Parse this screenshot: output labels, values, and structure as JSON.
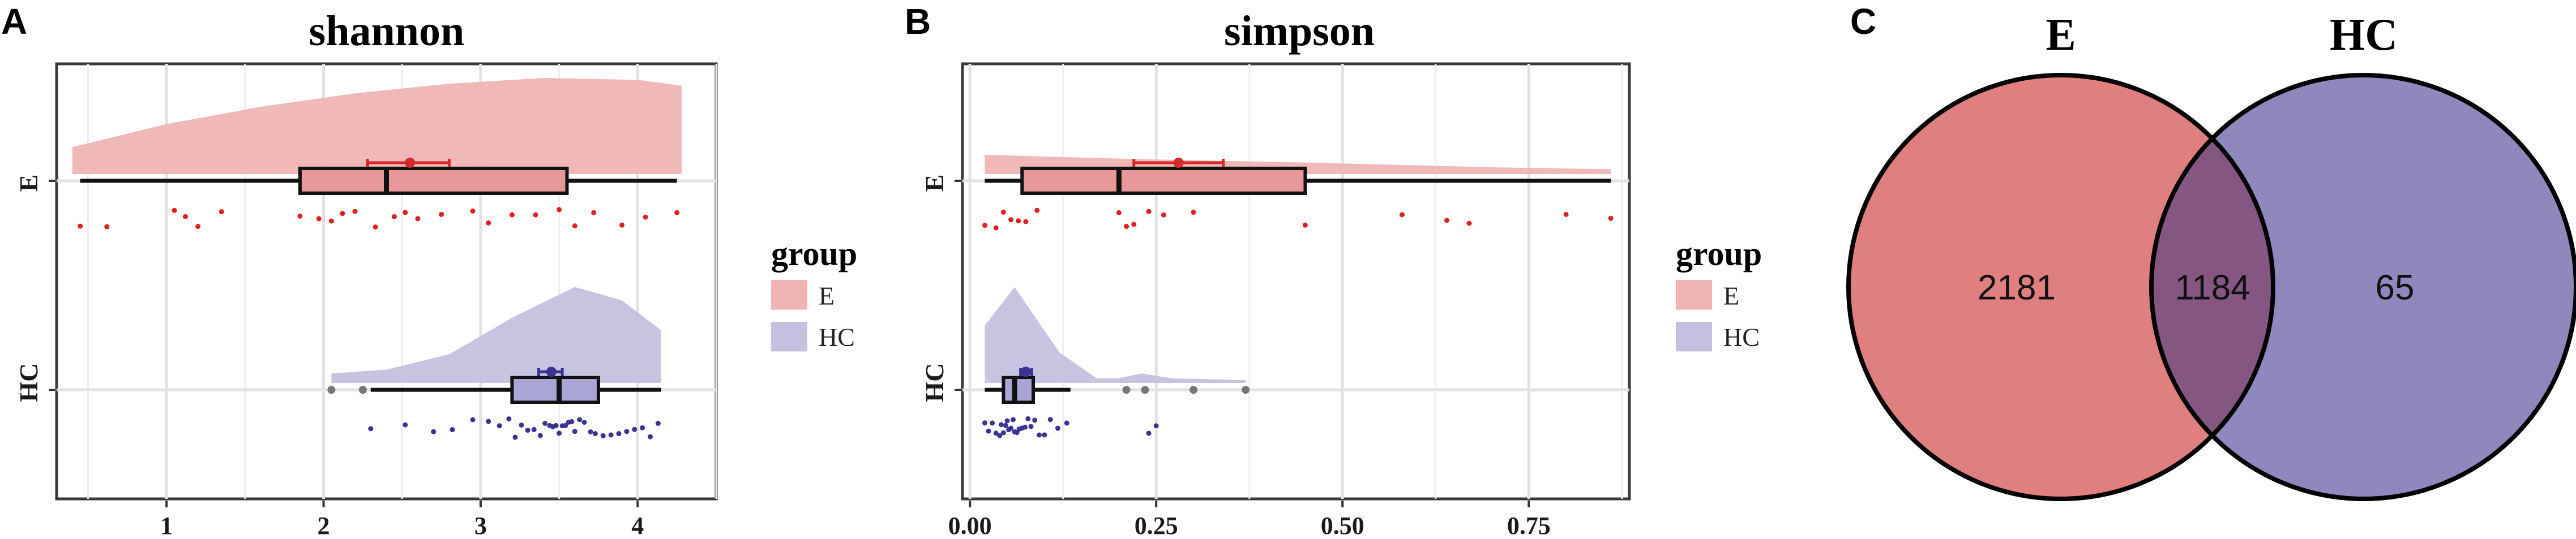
{
  "panels": {
    "a": "A",
    "b": "B",
    "c": "C"
  },
  "colors": {
    "E_fill": "#f0b4b4",
    "E_box": "#e89898",
    "E_point": "#e02020",
    "E_mean": "#d62a2a",
    "HC_fill": "#c4c1e0",
    "HC_box": "#a9a6d6",
    "HC_point": "#3b3394",
    "outlier": "#777777",
    "venn_E": "#e07f80",
    "venn_HC": "#8f88bd",
    "venn_overlap": "#855682"
  },
  "legend": {
    "title": "group",
    "items": [
      "E",
      "HC"
    ]
  },
  "chart_data": [
    {
      "type": "raincloud",
      "title": "shannon",
      "xlabel": "",
      "ylabel": "",
      "xlim": [
        0.3,
        4.5
      ],
      "xticks": [
        1,
        2,
        3,
        4
      ],
      "xtick_labels": [
        "1",
        "2",
        "3",
        "4"
      ],
      "categories": [
        "E",
        "HC"
      ],
      "grid": true,
      "legend_position": "right",
      "series": [
        {
          "name": "E",
          "box": {
            "whisker_low": 0.45,
            "q1": 1.85,
            "median": 2.4,
            "q3": 3.55,
            "whisker_high": 4.25
          },
          "mean": 2.55,
          "ci": [
            2.28,
            2.8
          ],
          "outliers": [],
          "points": [
            0.45,
            0.62,
            1.05,
            1.12,
            1.2,
            1.35,
            1.85,
            1.97,
            2.05,
            2.12,
            2.2,
            2.33,
            2.45,
            2.52,
            2.6,
            2.75,
            2.95,
            3.05,
            3.2,
            3.35,
            3.5,
            3.6,
            3.72,
            3.9,
            4.05,
            4.25
          ],
          "density": {
            "x": [
              0.4,
              1.0,
              1.6,
              2.2,
              2.8,
              3.4,
              4.0,
              4.28
            ],
            "y": [
              0.28,
              0.52,
              0.7,
              0.84,
              0.94,
              1.0,
              0.98,
              0.92
            ]
          }
        },
        {
          "name": "HC",
          "box": {
            "whisker_low": 2.3,
            "q1": 3.2,
            "median": 3.5,
            "q3": 3.75,
            "whisker_high": 4.15
          },
          "mean": 3.45,
          "ci": [
            3.37,
            3.52
          ],
          "outliers": [
            2.05,
            2.25
          ],
          "points": [
            2.3,
            2.52,
            2.7,
            2.82,
            2.95,
            3.05,
            3.12,
            3.18,
            3.22,
            3.26,
            3.3,
            3.34,
            3.38,
            3.41,
            3.44,
            3.46,
            3.48,
            3.5,
            3.52,
            3.54,
            3.56,
            3.58,
            3.6,
            3.63,
            3.66,
            3.7,
            3.73,
            3.78,
            3.83,
            3.88,
            3.93,
            3.98,
            4.03,
            4.08,
            4.13
          ],
          "density": {
            "x": [
              2.05,
              2.4,
              2.8,
              3.2,
              3.6,
              3.9,
              4.15
            ],
            "y": [
              0.1,
              0.14,
              0.3,
              0.68,
              1.0,
              0.86,
              0.55
            ]
          }
        }
      ]
    },
    {
      "type": "raincloud",
      "title": "simpson",
      "xlabel": "",
      "ylabel": "",
      "xlim": [
        -0.01,
        0.885
      ],
      "xticks": [
        0.0,
        0.25,
        0.5,
        0.75
      ],
      "xtick_labels": [
        "0.00",
        "0.25",
        "0.50",
        "0.75"
      ],
      "categories": [
        "E",
        "HC"
      ],
      "grid": true,
      "legend_position": "right",
      "series": [
        {
          "name": "E",
          "box": {
            "whisker_low": 0.02,
            "q1": 0.07,
            "median": 0.2,
            "q3": 0.45,
            "whisker_high": 0.86
          },
          "mean": 0.28,
          "ci": [
            0.22,
            0.34
          ],
          "outliers": [],
          "points": [
            0.02,
            0.035,
            0.045,
            0.055,
            0.065,
            0.075,
            0.09,
            0.2,
            0.21,
            0.22,
            0.24,
            0.26,
            0.3,
            0.45,
            0.58,
            0.64,
            0.67,
            0.8,
            0.86
          ],
          "density": {
            "x": [
              0.02,
              0.2,
              0.45,
              0.7,
              0.86
            ],
            "y": [
              0.2,
              0.16,
              0.12,
              0.07,
              0.05
            ]
          }
        },
        {
          "name": "HC",
          "box": {
            "whisker_low": 0.02,
            "q1": 0.045,
            "median": 0.06,
            "q3": 0.085,
            "whisker_high": 0.135
          },
          "mean": 0.075,
          "ci": [
            0.068,
            0.083
          ],
          "outliers": [
            0.21,
            0.235,
            0.3,
            0.37
          ],
          "points": [
            0.02,
            0.025,
            0.03,
            0.035,
            0.04,
            0.042,
            0.045,
            0.048,
            0.05,
            0.052,
            0.055,
            0.058,
            0.06,
            0.063,
            0.066,
            0.07,
            0.074,
            0.078,
            0.082,
            0.087,
            0.093,
            0.1,
            0.108,
            0.118,
            0.13,
            0.24,
            0.25
          ],
          "density": {
            "x": [
              0.02,
              0.06,
              0.12,
              0.17,
              0.2,
              0.23,
              0.27,
              0.37
            ],
            "y": [
              0.6,
              1.0,
              0.32,
              0.05,
              0.05,
              0.1,
              0.05,
              0.03
            ]
          }
        }
      ]
    },
    {
      "type": "venn",
      "sets": [
        "E",
        "HC"
      ],
      "values": {
        "E_only": "2181",
        "both": "1184",
        "HC_only": "65"
      }
    }
  ]
}
